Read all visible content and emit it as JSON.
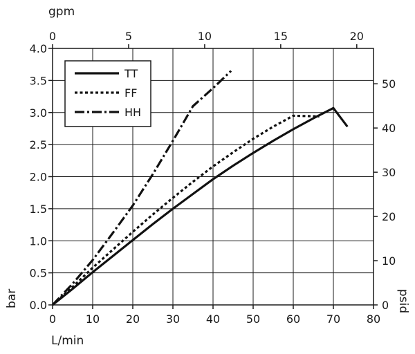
{
  "chart_data": {
    "type": "line",
    "xlabel": "L/min",
    "ylabel": "bar",
    "x2label": "gpm",
    "y2label": "psid",
    "xlim": [
      0,
      80
    ],
    "ylim": [
      0,
      4.0
    ],
    "x2lim": [
      0,
      21.1
    ],
    "y2lim": [
      0,
      58
    ],
    "xticks": [
      0,
      10,
      20,
      30,
      40,
      50,
      60,
      70,
      80
    ],
    "yticks": [
      0.0,
      0.5,
      1.0,
      1.5,
      2.0,
      2.5,
      3.0,
      3.5,
      4.0
    ],
    "x2ticks": [
      0,
      5,
      10,
      15,
      20
    ],
    "y2ticks": [
      0,
      10,
      20,
      30,
      40,
      50
    ],
    "xtick_labels": [
      "0",
      "10",
      "20",
      "30",
      "40",
      "50",
      "60",
      "70",
      "80"
    ],
    "ytick_labels": [
      "0.0",
      "0.5",
      "1.0",
      "1.5",
      "2.0",
      "2.5",
      "3.0",
      "3.5",
      "4.0"
    ],
    "x2tick_labels": [
      "0",
      "5",
      "10",
      "15",
      "20"
    ],
    "y2tick_labels": [
      "0",
      "10",
      "20",
      "30",
      "40",
      "50"
    ],
    "grid": true,
    "legend_position": "top-left",
    "series": [
      {
        "name": "TT",
        "style": "solid",
        "x": [
          0,
          5,
          10,
          15,
          20,
          25,
          30,
          35,
          40,
          45,
          50,
          55,
          60,
          65,
          70,
          73.5
        ],
        "y": [
          0,
          0.25,
          0.51,
          0.76,
          1.01,
          1.26,
          1.5,
          1.73,
          1.96,
          2.17,
          2.37,
          2.56,
          2.74,
          2.91,
          3.07,
          2.78
        ]
      },
      {
        "name": "FF",
        "style": "dotted",
        "x": [
          0,
          5,
          10,
          15,
          20,
          25,
          30,
          35,
          40,
          45,
          50,
          55,
          60,
          66.5
        ],
        "y": [
          0,
          0.28,
          0.58,
          0.86,
          1.14,
          1.41,
          1.67,
          1.92,
          2.16,
          2.38,
          2.59,
          2.78,
          2.95,
          2.94
        ]
      },
      {
        "name": "HH",
        "style": "dashdot",
        "x": [
          0,
          5,
          10,
          15,
          20,
          25,
          30,
          35,
          40,
          44.5
        ],
        "y": [
          0,
          0.33,
          0.7,
          1.12,
          1.55,
          2.04,
          2.56,
          3.1,
          3.38,
          3.65
        ]
      }
    ]
  },
  "colors": {
    "line": "#111111",
    "grid": "#1a1a1a",
    "background": "#ffffff"
  }
}
